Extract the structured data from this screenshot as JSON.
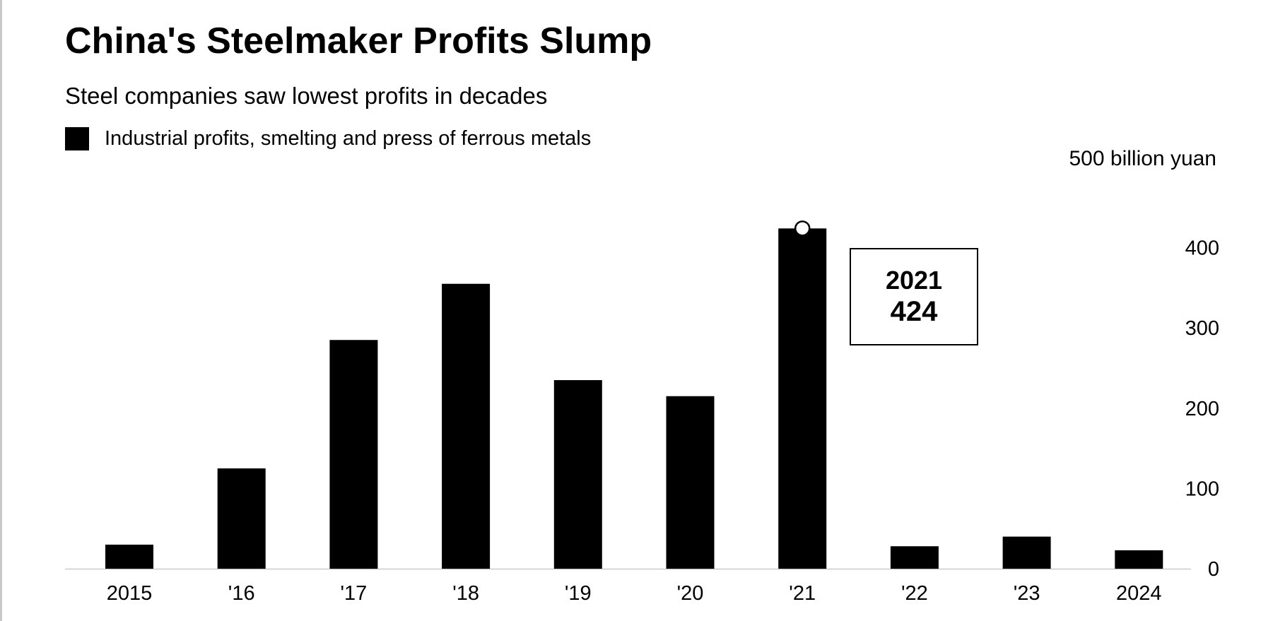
{
  "title": "China's Steelmaker Profits Slump",
  "subtitle": "Steel companies saw lowest profits in decades",
  "legend": {
    "label": "Industrial profits, smelting and press of ferrous metals",
    "color": "#000000"
  },
  "unit_label": "500 billion yuan",
  "colors": {
    "bar": "#000000",
    "baseline": "#cccccc",
    "callout_border": "#000000",
    "marker_fill": "#ffffff"
  },
  "chart_data": {
    "type": "bar",
    "categories": [
      "2015",
      "'16",
      "'17",
      "'18",
      "'19",
      "'20",
      "'21",
      "'22",
      "'23",
      "2024"
    ],
    "series": [
      {
        "name": "Industrial profits, smelting and press of ferrous metals",
        "values": [
          30,
          125,
          285,
          355,
          235,
          215,
          424,
          28,
          40,
          23
        ]
      }
    ],
    "y_ticks": [
      0,
      100,
      200,
      300,
      400
    ],
    "y_tick_labels": [
      "0",
      "100",
      "200",
      "300",
      "400"
    ],
    "ylim": [
      0,
      500
    ],
    "ylabel": "500 billion yuan",
    "y_axis_side": "right",
    "grid": false,
    "legend_position": "top-left",
    "highlight": {
      "category_index": 6,
      "label_year": "2021",
      "label_value": "424"
    }
  }
}
